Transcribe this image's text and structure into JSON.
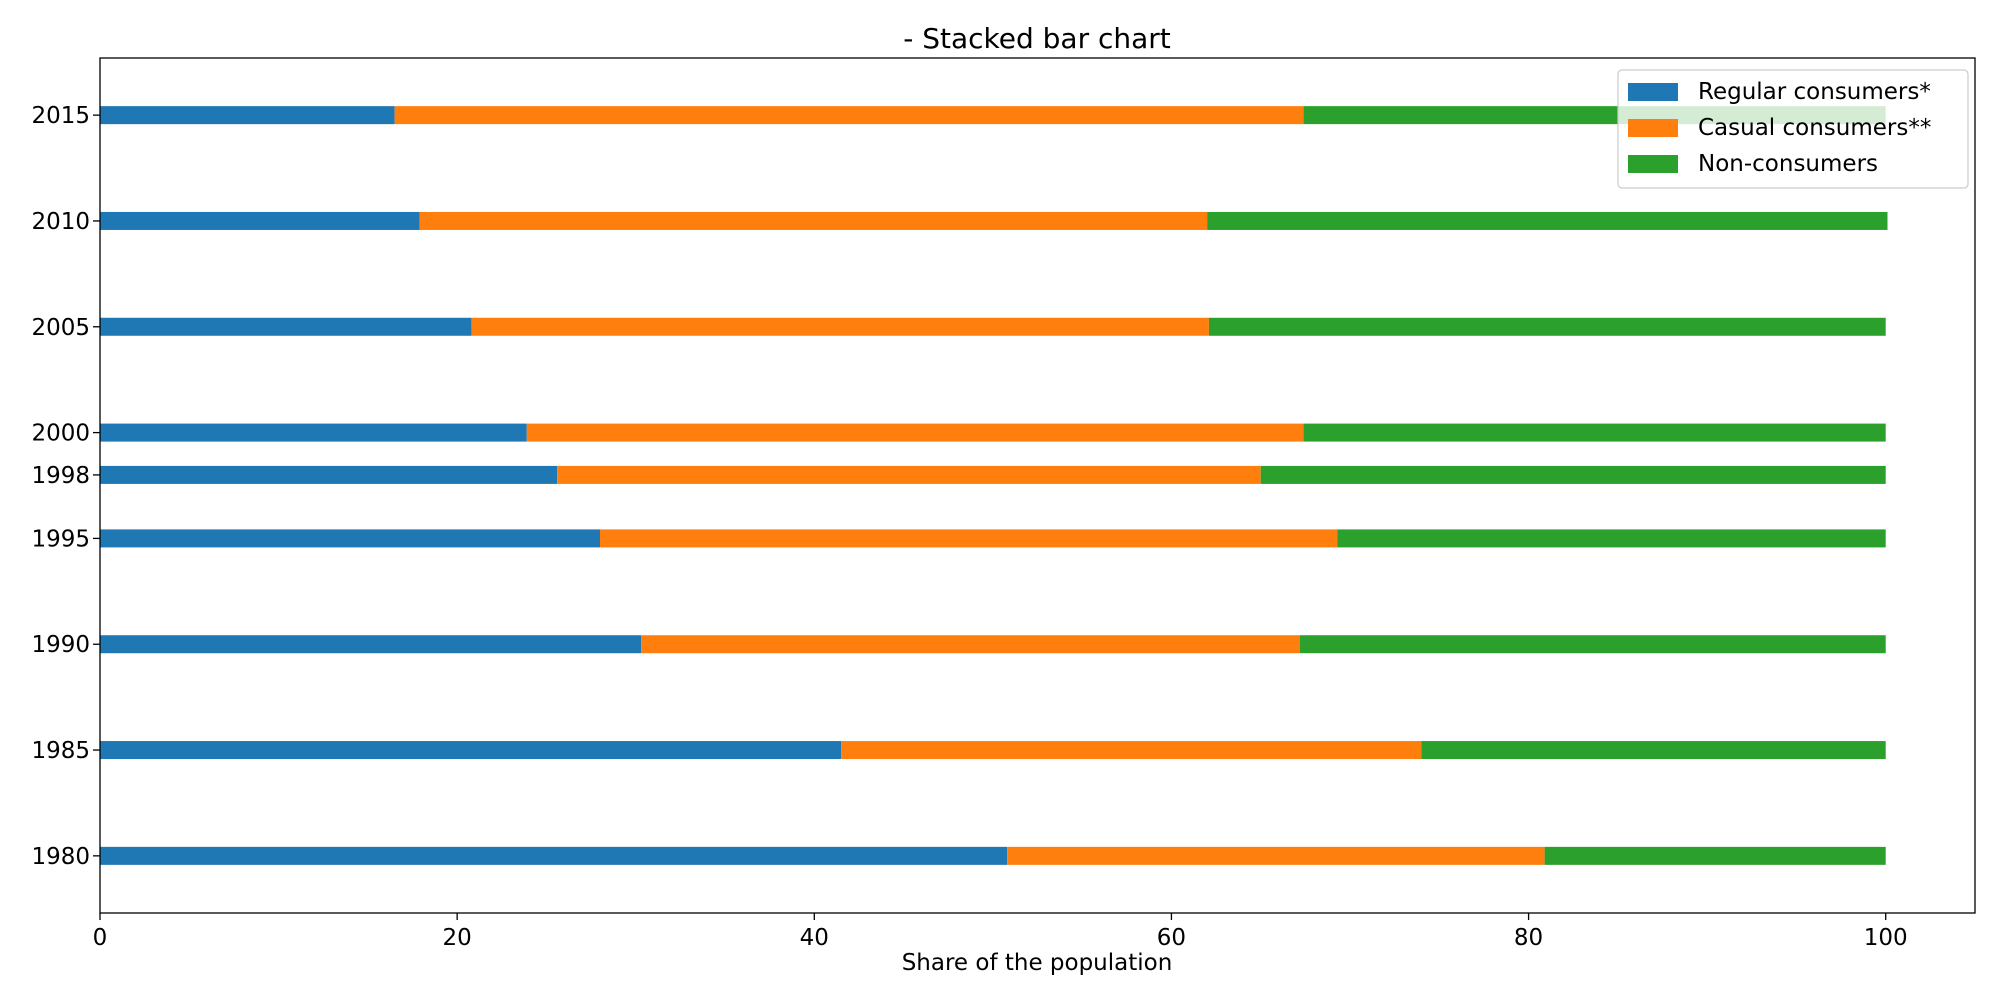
{
  "chart_data": {
    "type": "bar",
    "orientation": "horizontal",
    "stacked": true,
    "title": "- Stacked bar chart",
    "xlabel": "Share of the population",
    "ylabel": "",
    "xlim": [
      0,
      105
    ],
    "ylim": [
      1977.3,
      2017.7
    ],
    "x_ticks": [
      0,
      20,
      40,
      60,
      80,
      100
    ],
    "categories": [
      1980,
      1985,
      1990,
      1995,
      1998,
      2000,
      2005,
      2010,
      2015
    ],
    "series": [
      {
        "name": "Regular consumers*",
        "color": "#1f77b4",
        "values": [
          50.8,
          41.5,
          30.3,
          28.0,
          25.6,
          23.9,
          20.8,
          17.9,
          16.5
        ]
      },
      {
        "name": "Casual consumers**",
        "color": "#ff7f0e",
        "values": [
          30.1,
          32.5,
          36.9,
          41.3,
          39.4,
          43.5,
          41.3,
          44.1,
          50.9
        ]
      },
      {
        "name": "Non-consumers",
        "color": "#2ca02c",
        "values": [
          19.1,
          26.0,
          32.8,
          30.7,
          35.0,
          32.6,
          37.9,
          38.1,
          32.6
        ]
      }
    ],
    "grid": false,
    "legend_position": "top-right"
  }
}
